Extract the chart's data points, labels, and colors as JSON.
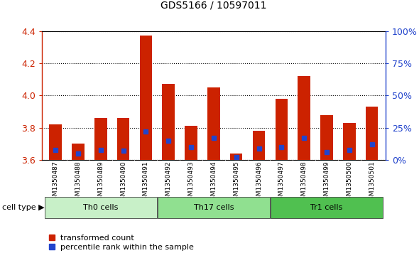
{
  "title": "GDS5166 / 10597011",
  "samples": [
    "GSM1350487",
    "GSM1350488",
    "GSM1350489",
    "GSM1350490",
    "GSM1350491",
    "GSM1350492",
    "GSM1350493",
    "GSM1350494",
    "GSM1350495",
    "GSM1350496",
    "GSM1350497",
    "GSM1350498",
    "GSM1350499",
    "GSM1350500",
    "GSM1350501"
  ],
  "transformed_count": [
    3.82,
    3.7,
    3.86,
    3.86,
    4.37,
    4.07,
    3.81,
    4.05,
    3.64,
    3.78,
    3.98,
    4.12,
    3.88,
    3.83,
    3.93
  ],
  "percentile_rank": [
    8,
    5,
    8,
    7,
    22,
    15,
    10,
    17,
    2,
    9,
    10,
    17,
    6,
    8,
    12
  ],
  "cell_types": [
    {
      "label": "Th0 cells",
      "start": 0,
      "end": 4,
      "color": "#c8f0c8"
    },
    {
      "label": "Th17 cells",
      "start": 5,
      "end": 9,
      "color": "#90e090"
    },
    {
      "label": "Tr1 cells",
      "start": 10,
      "end": 14,
      "color": "#50c050"
    }
  ],
  "ymin": 3.6,
  "ymax": 4.4,
  "y_ticks": [
    3.6,
    3.8,
    4.0,
    4.2,
    4.4
  ],
  "right_yticks": [
    0,
    25,
    50,
    75,
    100
  ],
  "right_ytick_labels": [
    "0%",
    "25%",
    "50%",
    "75%",
    "100%"
  ],
  "bar_color_red": "#cc2200",
  "bar_color_blue": "#2244cc",
  "xtick_bg_color": "#c8c8c8",
  "cell_band_bg": "#d0d0d0",
  "plot_bg": "#ffffff",
  "cell_type_label": "cell type",
  "legend_red": "transformed count",
  "legend_blue": "percentile rank within the sample",
  "bar_width": 0.55
}
